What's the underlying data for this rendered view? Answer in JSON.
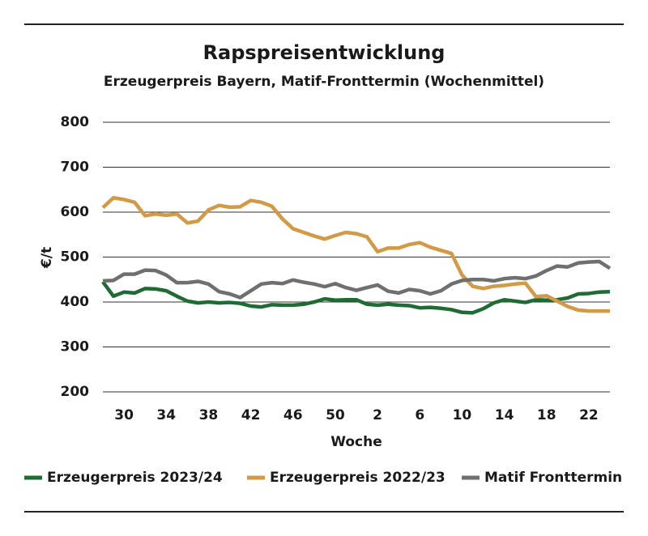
{
  "chart_data": {
    "type": "line",
    "title": "Rapspreisentwicklung",
    "subtitle": "Erzeugerpreis Bayern, Matif-Fronttermin (Wochenmittel)",
    "x_label": "Woche",
    "y_label": "€/t",
    "categories": [
      null,
      null,
      "30",
      null,
      null,
      null,
      "34",
      null,
      null,
      null,
      "38",
      null,
      null,
      null,
      "42",
      null,
      null,
      null,
      "46",
      null,
      null,
      null,
      "50",
      null,
      null,
      null,
      "2",
      null,
      null,
      null,
      "6",
      null,
      null,
      null,
      "10",
      null,
      null,
      null,
      "14",
      null,
      null,
      null,
      "18",
      null,
      null,
      null,
      "22",
      null,
      null
    ],
    "series": [
      {
        "name": "Erzeugerpreis 2023/24",
        "color": "#1e6b34",
        "values": [
          445,
          413,
          422,
          420,
          430,
          429,
          425,
          413,
          402,
          398,
          400,
          398,
          399,
          397,
          391,
          389,
          394,
          393,
          393,
          395,
          400,
          407,
          404,
          405,
          405,
          395,
          393,
          395,
          393,
          392,
          387,
          388,
          386,
          383,
          377,
          376,
          385,
          398,
          405,
          402,
          399,
          405,
          404,
          405,
          409,
          418,
          419,
          422,
          423
        ]
      },
      {
        "name": "Erzeugerpreis 2022/23",
        "color": "#d39a45",
        "values": [
          610,
          632,
          628,
          622,
          592,
          596,
          593,
          596,
          576,
          580,
          605,
          615,
          611,
          612,
          626,
          622,
          613,
          585,
          563,
          555,
          547,
          540,
          548,
          555,
          552,
          545,
          512,
          520,
          520,
          528,
          532,
          522,
          515,
          508,
          460,
          435,
          430,
          435,
          437,
          440,
          442,
          412,
          414,
          402,
          390,
          382,
          380,
          380,
          380
        ]
      },
      {
        "name": "Matif Fronttermin",
        "color": "#6e706d",
        "values": [
          447,
          448,
          462,
          462,
          471,
          470,
          460,
          443,
          443,
          446,
          440,
          423,
          418,
          410,
          425,
          440,
          443,
          441,
          449,
          444,
          440,
          434,
          441,
          432,
          426,
          432,
          438,
          424,
          420,
          428,
          425,
          418,
          425,
          440,
          448,
          450,
          450,
          447,
          452,
          454,
          452,
          458,
          470,
          480,
          478,
          487,
          489,
          490,
          475
        ]
      }
    ],
    "ylim": [
      200,
      800
    ],
    "yticks": [
      200,
      300,
      400,
      500,
      600,
      700,
      800
    ],
    "grid": true
  }
}
